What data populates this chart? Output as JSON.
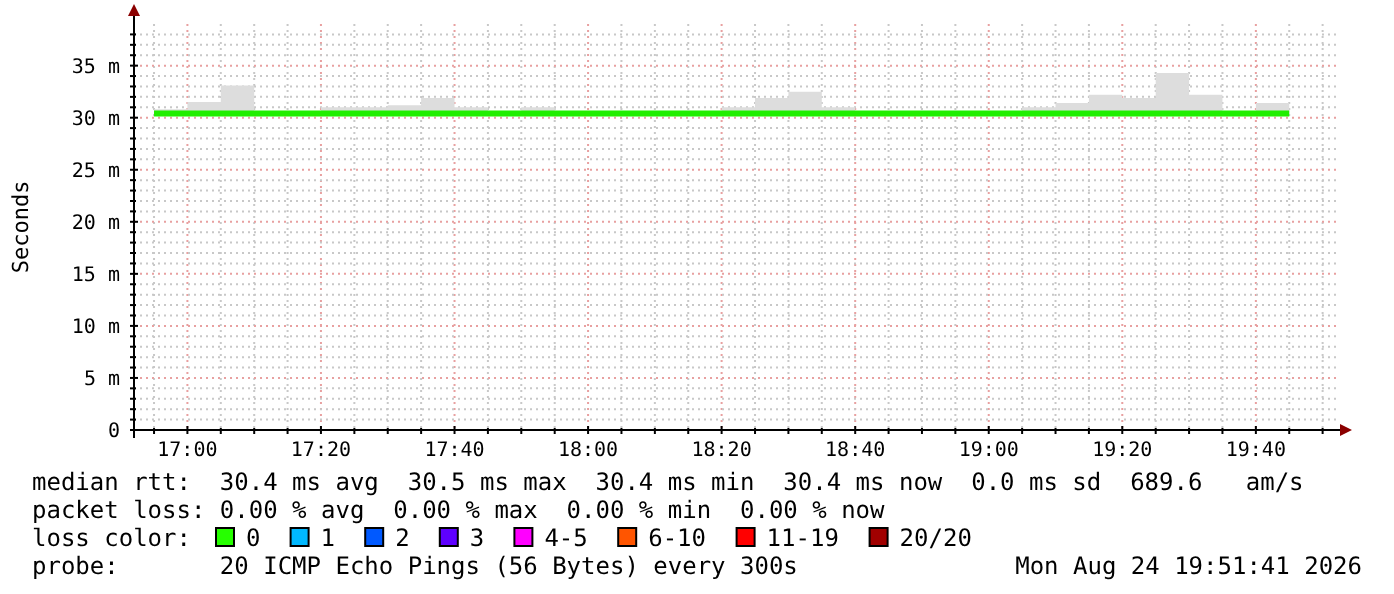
{
  "chart_data": {
    "type": "step",
    "ylabel": "Seconds",
    "xlim": [
      16.8667,
      19.8667
    ],
    "xticks": [
      {
        "value": 16.9167,
        "label": null
      },
      {
        "value": 17,
        "label": "17:00"
      },
      {
        "value": 17.0833,
        "label": null
      },
      {
        "value": 17.1667,
        "label": null
      },
      {
        "value": 17.25,
        "label": null
      },
      {
        "value": 17.3333,
        "label": "17:20"
      },
      {
        "value": 17.4167,
        "label": null
      },
      {
        "value": 17.5,
        "label": null
      },
      {
        "value": 17.5833,
        "label": null
      },
      {
        "value": 17.6667,
        "label": "17:40"
      },
      {
        "value": 17.75,
        "label": null
      },
      {
        "value": 17.8333,
        "label": null
      },
      {
        "value": 17.9167,
        "label": null
      },
      {
        "value": 18,
        "label": "18:00"
      },
      {
        "value": 18.0833,
        "label": null
      },
      {
        "value": 18.1667,
        "label": null
      },
      {
        "value": 18.25,
        "label": null
      },
      {
        "value": 18.3333,
        "label": "18:20"
      },
      {
        "value": 18.4167,
        "label": null
      },
      {
        "value": 18.5,
        "label": null
      },
      {
        "value": 18.5833,
        "label": null
      },
      {
        "value": 18.6667,
        "label": "18:40"
      },
      {
        "value": 18.75,
        "label": null
      },
      {
        "value": 18.8333,
        "label": null
      },
      {
        "value": 18.9167,
        "label": null
      },
      {
        "value": 19,
        "label": "19:00"
      },
      {
        "value": 19.0833,
        "label": null
      },
      {
        "value": 19.1667,
        "label": null
      },
      {
        "value": 19.25,
        "label": null
      },
      {
        "value": 19.3333,
        "label": "19:20"
      },
      {
        "value": 19.4167,
        "label": null
      },
      {
        "value": 19.5,
        "label": null
      },
      {
        "value": 19.5833,
        "label": null
      },
      {
        "value": 19.6667,
        "label": "19:40"
      },
      {
        "value": 19.75,
        "label": null
      },
      {
        "value": 19.8333,
        "label": null
      }
    ],
    "ylim": [
      0,
      39
    ],
    "yticks": [
      0,
      {
        "value": 1,
        "label": null
      },
      {
        "value": 2,
        "label": null
      },
      {
        "value": 3,
        "label": null
      },
      {
        "value": 4,
        "label": null
      },
      {
        "value": 5,
        "label": "5 m"
      },
      {
        "value": 6,
        "label": null
      },
      {
        "value": 7,
        "label": null
      },
      {
        "value": 8,
        "label": null
      },
      {
        "value": 9,
        "label": null
      },
      {
        "value": 10,
        "label": "10 m"
      },
      {
        "value": 11,
        "label": null
      },
      {
        "value": 12,
        "label": null
      },
      {
        "value": 13,
        "label": null
      },
      {
        "value": 14,
        "label": null
      },
      {
        "value": 15,
        "label": "15 m"
      },
      {
        "value": 16,
        "label": null
      },
      {
        "value": 17,
        "label": null
      },
      {
        "value": 18,
        "label": null
      },
      {
        "value": 19,
        "label": null
      },
      {
        "value": 20,
        "label": "20 m"
      },
      {
        "value": 21,
        "label": null
      },
      {
        "value": 22,
        "label": null
      },
      {
        "value": 23,
        "label": null
      },
      {
        "value": 24,
        "label": null
      },
      {
        "value": 25,
        "label": "25 m"
      },
      {
        "value": 26,
        "label": null
      },
      {
        "value": 27,
        "label": null
      },
      {
        "value": 28,
        "label": null
      },
      {
        "value": 29,
        "label": null
      },
      {
        "value": 30,
        "label": "30 m"
      },
      {
        "value": 31,
        "label": null
      },
      {
        "value": 32,
        "label": null
      },
      {
        "value": 33,
        "label": null
      },
      {
        "value": 34,
        "label": null
      },
      {
        "value": 35,
        "label": "35 m"
      },
      {
        "value": 36,
        "label": null
      },
      {
        "value": 37,
        "label": null
      },
      {
        "value": 38,
        "label": null
      }
    ],
    "grid": true,
    "x": [
      16.9167,
      17,
      17.0833,
      17.1667,
      17.25,
      17.3333,
      17.4167,
      17.5,
      17.5833,
      17.6667,
      17.75,
      17.8333,
      17.9167,
      18,
      18.0833,
      18.1667,
      18.25,
      18.3333,
      18.4167,
      18.5,
      18.5833,
      18.6667,
      18.75,
      18.8333,
      18.9167,
      19,
      19.0833,
      19.1667,
      19.25,
      19.3333,
      19.4167,
      19.5,
      19.5833,
      19.6667,
      19.75
    ],
    "series": [
      {
        "color": "#22ee00",
        "values": [
          30.4,
          30.4,
          30.4,
          30.4,
          30.4,
          30.4,
          30.4,
          30.4,
          30.4,
          30.4,
          30.4,
          30.4,
          30.4,
          30.4,
          30.4,
          30.4,
          30.4,
          30.4,
          30.4,
          30.4,
          30.4,
          30.4,
          30.4,
          30.4,
          30.4,
          30.4,
          30.4,
          30.4,
          30.4,
          30.4,
          30.4,
          30.4,
          30.4,
          30.4,
          30.4
        ],
        "lower": [
          30.3,
          30.3,
          30.3,
          30.3,
          30.3,
          30.3,
          30.3,
          30.3,
          30.3,
          30.3,
          30.3,
          30.3,
          30.3,
          30.3,
          30.3,
          30.3,
          30.3,
          30.3,
          30.3,
          30.3,
          30.3,
          30.3,
          30.3,
          30.3,
          30.3,
          30.3,
          30.3,
          30.3,
          30.3,
          30.3,
          30.3,
          30.3,
          30.3,
          30.3,
          30.3
        ],
        "upper": [
          30.8,
          31.5,
          33.1,
          30.6,
          30.6,
          31.0,
          31.0,
          31.2,
          31.9,
          31.0,
          30.6,
          31.0,
          30.6,
          30.6,
          30.6,
          30.6,
          30.6,
          31.0,
          31.9,
          32.5,
          31.0,
          30.6,
          30.6,
          30.6,
          30.6,
          30.6,
          31.0,
          31.4,
          32.2,
          31.9,
          34.3,
          32.2,
          30.6,
          31.4,
          31.4
        ]
      }
    ],
    "annotations": [
      "median rtt:  30.4 ms avg  30.5 ms max  30.4 ms min  30.4 ms now  0.0 ms sd  689.6   am/s",
      "packet loss: 0.00 % avg  0.00 % max  0.00 % min  0.00 % now",
      "loss color:",
      "0",
      "1",
      "2",
      "3",
      "4-5",
      "6-10",
      "11-19",
      "20/20",
      "probe:       20 ICMP Echo Pings (56 Bytes) every 300s",
      "Mon Aug 24 19:51:41 2026"
    ]
  }
}
